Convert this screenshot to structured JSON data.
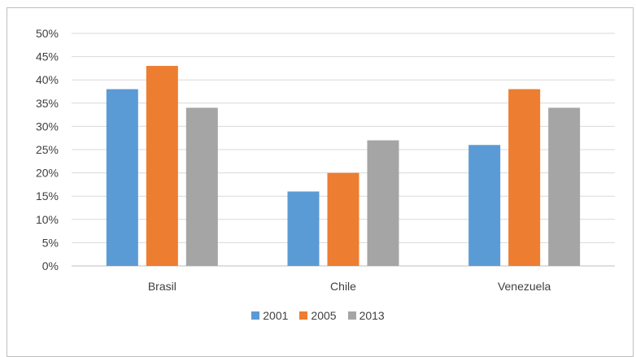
{
  "chart_data": {
    "type": "bar",
    "categories": [
      "Brasil",
      "Chile",
      "Venezuela"
    ],
    "series": [
      {
        "name": "2001",
        "values": [
          38,
          16,
          26
        ],
        "color": "#5b9bd5"
      },
      {
        "name": "2005",
        "values": [
          43,
          20,
          38
        ],
        "color": "#ed7d31"
      },
      {
        "name": "2013",
        "values": [
          34,
          27,
          34
        ],
        "color": "#a5a5a5"
      }
    ],
    "ylim": [
      0,
      50
    ],
    "yticks": [
      "0%",
      "5%",
      "10%",
      "15%",
      "20%",
      "25%",
      "30%",
      "35%",
      "40%",
      "45%",
      "50%"
    ],
    "grid": true,
    "legend_position": "bottom"
  }
}
